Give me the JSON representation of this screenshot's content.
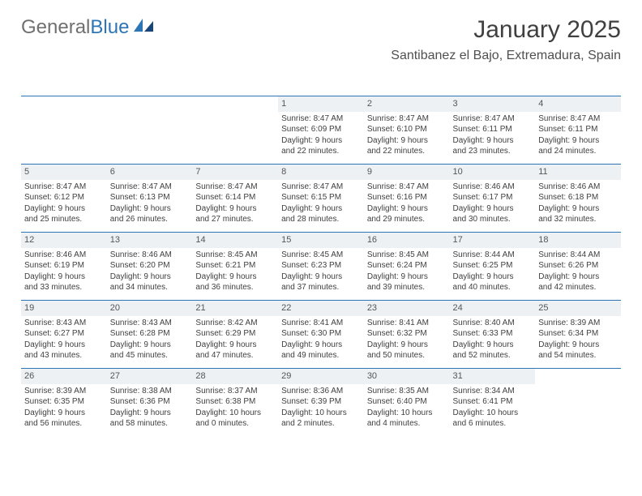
{
  "brand": {
    "part1": "General",
    "part2": "Blue"
  },
  "title": "January 2025",
  "location": "Santibanez el Bajo, Extremadura, Spain",
  "colors": {
    "header_bg": "#3bb0e0",
    "header_text": "#ffffff",
    "row_divider": "#2e75b6",
    "daynum_bg": "#eef1f4",
    "text": "#404040",
    "logo_gray": "#707070",
    "logo_blue": "#2e75b6"
  },
  "typography": {
    "title_fontsize": 30,
    "location_fontsize": 16,
    "header_fontsize": 12,
    "cell_fontsize": 10
  },
  "day_headers": [
    "Sunday",
    "Monday",
    "Tuesday",
    "Wednesday",
    "Thursday",
    "Friday",
    "Saturday"
  ],
  "weeks": [
    [
      null,
      null,
      null,
      {
        "n": "1",
        "sr": "Sunrise: 8:47 AM",
        "ss": "Sunset: 6:09 PM",
        "d1": "Daylight: 9 hours",
        "d2": "and 22 minutes."
      },
      {
        "n": "2",
        "sr": "Sunrise: 8:47 AM",
        "ss": "Sunset: 6:10 PM",
        "d1": "Daylight: 9 hours",
        "d2": "and 22 minutes."
      },
      {
        "n": "3",
        "sr": "Sunrise: 8:47 AM",
        "ss": "Sunset: 6:11 PM",
        "d1": "Daylight: 9 hours",
        "d2": "and 23 minutes."
      },
      {
        "n": "4",
        "sr": "Sunrise: 8:47 AM",
        "ss": "Sunset: 6:11 PM",
        "d1": "Daylight: 9 hours",
        "d2": "and 24 minutes."
      }
    ],
    [
      {
        "n": "5",
        "sr": "Sunrise: 8:47 AM",
        "ss": "Sunset: 6:12 PM",
        "d1": "Daylight: 9 hours",
        "d2": "and 25 minutes."
      },
      {
        "n": "6",
        "sr": "Sunrise: 8:47 AM",
        "ss": "Sunset: 6:13 PM",
        "d1": "Daylight: 9 hours",
        "d2": "and 26 minutes."
      },
      {
        "n": "7",
        "sr": "Sunrise: 8:47 AM",
        "ss": "Sunset: 6:14 PM",
        "d1": "Daylight: 9 hours",
        "d2": "and 27 minutes."
      },
      {
        "n": "8",
        "sr": "Sunrise: 8:47 AM",
        "ss": "Sunset: 6:15 PM",
        "d1": "Daylight: 9 hours",
        "d2": "and 28 minutes."
      },
      {
        "n": "9",
        "sr": "Sunrise: 8:47 AM",
        "ss": "Sunset: 6:16 PM",
        "d1": "Daylight: 9 hours",
        "d2": "and 29 minutes."
      },
      {
        "n": "10",
        "sr": "Sunrise: 8:46 AM",
        "ss": "Sunset: 6:17 PM",
        "d1": "Daylight: 9 hours",
        "d2": "and 30 minutes."
      },
      {
        "n": "11",
        "sr": "Sunrise: 8:46 AM",
        "ss": "Sunset: 6:18 PM",
        "d1": "Daylight: 9 hours",
        "d2": "and 32 minutes."
      }
    ],
    [
      {
        "n": "12",
        "sr": "Sunrise: 8:46 AM",
        "ss": "Sunset: 6:19 PM",
        "d1": "Daylight: 9 hours",
        "d2": "and 33 minutes."
      },
      {
        "n": "13",
        "sr": "Sunrise: 8:46 AM",
        "ss": "Sunset: 6:20 PM",
        "d1": "Daylight: 9 hours",
        "d2": "and 34 minutes."
      },
      {
        "n": "14",
        "sr": "Sunrise: 8:45 AM",
        "ss": "Sunset: 6:21 PM",
        "d1": "Daylight: 9 hours",
        "d2": "and 36 minutes."
      },
      {
        "n": "15",
        "sr": "Sunrise: 8:45 AM",
        "ss": "Sunset: 6:23 PM",
        "d1": "Daylight: 9 hours",
        "d2": "and 37 minutes."
      },
      {
        "n": "16",
        "sr": "Sunrise: 8:45 AM",
        "ss": "Sunset: 6:24 PM",
        "d1": "Daylight: 9 hours",
        "d2": "and 39 minutes."
      },
      {
        "n": "17",
        "sr": "Sunrise: 8:44 AM",
        "ss": "Sunset: 6:25 PM",
        "d1": "Daylight: 9 hours",
        "d2": "and 40 minutes."
      },
      {
        "n": "18",
        "sr": "Sunrise: 8:44 AM",
        "ss": "Sunset: 6:26 PM",
        "d1": "Daylight: 9 hours",
        "d2": "and 42 minutes."
      }
    ],
    [
      {
        "n": "19",
        "sr": "Sunrise: 8:43 AM",
        "ss": "Sunset: 6:27 PM",
        "d1": "Daylight: 9 hours",
        "d2": "and 43 minutes."
      },
      {
        "n": "20",
        "sr": "Sunrise: 8:43 AM",
        "ss": "Sunset: 6:28 PM",
        "d1": "Daylight: 9 hours",
        "d2": "and 45 minutes."
      },
      {
        "n": "21",
        "sr": "Sunrise: 8:42 AM",
        "ss": "Sunset: 6:29 PM",
        "d1": "Daylight: 9 hours",
        "d2": "and 47 minutes."
      },
      {
        "n": "22",
        "sr": "Sunrise: 8:41 AM",
        "ss": "Sunset: 6:30 PM",
        "d1": "Daylight: 9 hours",
        "d2": "and 49 minutes."
      },
      {
        "n": "23",
        "sr": "Sunrise: 8:41 AM",
        "ss": "Sunset: 6:32 PM",
        "d1": "Daylight: 9 hours",
        "d2": "and 50 minutes."
      },
      {
        "n": "24",
        "sr": "Sunrise: 8:40 AM",
        "ss": "Sunset: 6:33 PM",
        "d1": "Daylight: 9 hours",
        "d2": "and 52 minutes."
      },
      {
        "n": "25",
        "sr": "Sunrise: 8:39 AM",
        "ss": "Sunset: 6:34 PM",
        "d1": "Daylight: 9 hours",
        "d2": "and 54 minutes."
      }
    ],
    [
      {
        "n": "26",
        "sr": "Sunrise: 8:39 AM",
        "ss": "Sunset: 6:35 PM",
        "d1": "Daylight: 9 hours",
        "d2": "and 56 minutes."
      },
      {
        "n": "27",
        "sr": "Sunrise: 8:38 AM",
        "ss": "Sunset: 6:36 PM",
        "d1": "Daylight: 9 hours",
        "d2": "and 58 minutes."
      },
      {
        "n": "28",
        "sr": "Sunrise: 8:37 AM",
        "ss": "Sunset: 6:38 PM",
        "d1": "Daylight: 10 hours",
        "d2": "and 0 minutes."
      },
      {
        "n": "29",
        "sr": "Sunrise: 8:36 AM",
        "ss": "Sunset: 6:39 PM",
        "d1": "Daylight: 10 hours",
        "d2": "and 2 minutes."
      },
      {
        "n": "30",
        "sr": "Sunrise: 8:35 AM",
        "ss": "Sunset: 6:40 PM",
        "d1": "Daylight: 10 hours",
        "d2": "and 4 minutes."
      },
      {
        "n": "31",
        "sr": "Sunrise: 8:34 AM",
        "ss": "Sunset: 6:41 PM",
        "d1": "Daylight: 10 hours",
        "d2": "and 6 minutes."
      },
      null
    ]
  ]
}
